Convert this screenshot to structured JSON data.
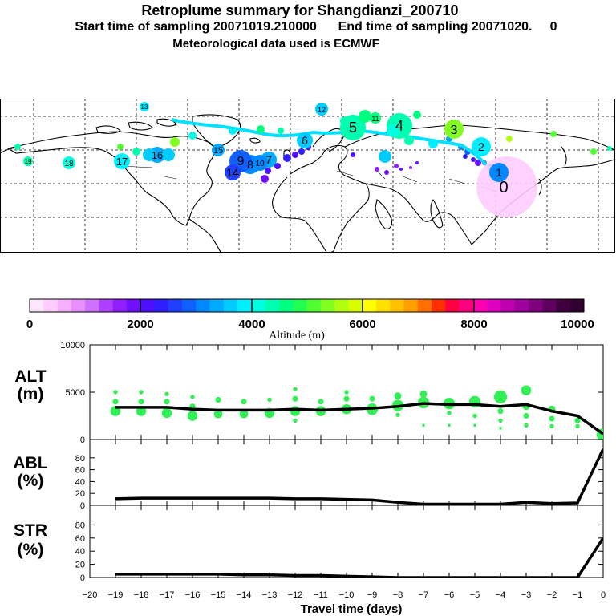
{
  "header": {
    "title": "Retroplume summary for Shangdianzi_200710",
    "start_label": "Start time of sampling 20071019.210000",
    "end_label": "End time of sampling 20071020.     0",
    "met_label": "Meteorological data used is ECMWF"
  },
  "colorbar": {
    "label": "Altitude (m)",
    "ticks": [
      "0",
      "2000",
      "4000",
      "6000",
      "8000",
      "10000"
    ],
    "colors": [
      "#ffe6ff",
      "#ffccff",
      "#f5b0ff",
      "#e890ff",
      "#d070ff",
      "#b040ff",
      "#9020ff",
      "#7010ff",
      "#5010ff",
      "#3020ff",
      "#2040ff",
      "#1060ff",
      "#0088ff",
      "#00aaff",
      "#00ccff",
      "#00eeff",
      "#00ffe0",
      "#00ffb0",
      "#00ff80",
      "#20ff50",
      "#50ff30",
      "#80ff20",
      "#b0ff10",
      "#d8ff00",
      "#ffff00",
      "#ffe000",
      "#ffc000",
      "#ffa000",
      "#ff7000",
      "#ff3000",
      "#ff0040",
      "#ff0080",
      "#ff00b0",
      "#e000c0",
      "#c000b0",
      "#a000a0",
      "#800080",
      "#600060",
      "#400040",
      "#300030"
    ]
  },
  "map": {
    "cluster_labels": [
      "0",
      "1",
      "2",
      "3",
      "4",
      "5",
      "6",
      "7",
      "8",
      "9",
      "10",
      "11",
      "12",
      "13",
      "14",
      "15",
      "16",
      "17",
      "18",
      "19"
    ]
  },
  "chart_data": [
    {
      "type": "scatter",
      "name": "ALT",
      "ylabel": "ALT\n(m)",
      "ylabel_lines": [
        "ALT",
        "(m)"
      ],
      "ylim": [
        0,
        10000
      ],
      "yticks": [
        "0",
        "5000",
        "10000"
      ],
      "x": [
        -19,
        -18,
        -17,
        -16,
        -15,
        -14,
        -13,
        -12,
        -11,
        -10,
        -9,
        -8,
        -7,
        -6,
        -5,
        -4,
        -3,
        -2,
        -1,
        0
      ],
      "mean_line": [
        3400,
        3400,
        3400,
        3200,
        3100,
        3100,
        3100,
        3200,
        3100,
        3200,
        3300,
        3500,
        3800,
        3700,
        3700,
        3500,
        3700,
        3000,
        2500,
        600
      ],
      "points": [
        {
          "x": -19,
          "y": 3000,
          "s": 7
        },
        {
          "x": -19,
          "y": 4000,
          "s": 4
        },
        {
          "x": -19,
          "y": 5000,
          "s": 3
        },
        {
          "x": -18,
          "y": 3000,
          "s": 7
        },
        {
          "x": -18,
          "y": 4000,
          "s": 4
        },
        {
          "x": -18,
          "y": 5000,
          "s": 3
        },
        {
          "x": -17,
          "y": 2800,
          "s": 7
        },
        {
          "x": -17,
          "y": 4000,
          "s": 4
        },
        {
          "x": -17,
          "y": 4800,
          "s": 3
        },
        {
          "x": -16,
          "y": 2500,
          "s": 7
        },
        {
          "x": -16,
          "y": 3500,
          "s": 4
        },
        {
          "x": -16,
          "y": 4500,
          "s": 3
        },
        {
          "x": -15,
          "y": 2700,
          "s": 6
        },
        {
          "x": -15,
          "y": 4200,
          "s": 4
        },
        {
          "x": -14,
          "y": 2700,
          "s": 6
        },
        {
          "x": -14,
          "y": 4000,
          "s": 4
        },
        {
          "x": -13,
          "y": 2800,
          "s": 7
        },
        {
          "x": -13,
          "y": 4200,
          "s": 3
        },
        {
          "x": -12,
          "y": 3000,
          "s": 7
        },
        {
          "x": -12,
          "y": 4300,
          "s": 4
        },
        {
          "x": -12,
          "y": 5300,
          "s": 3
        },
        {
          "x": -12,
          "y": 2000,
          "s": 3
        },
        {
          "x": -11,
          "y": 3000,
          "s": 7
        },
        {
          "x": -11,
          "y": 4000,
          "s": 4
        },
        {
          "x": -10,
          "y": 3200,
          "s": 7
        },
        {
          "x": -10,
          "y": 4300,
          "s": 4
        },
        {
          "x": -10,
          "y": 5000,
          "s": 3
        },
        {
          "x": -9,
          "y": 3200,
          "s": 8
        },
        {
          "x": -9,
          "y": 4300,
          "s": 4
        },
        {
          "x": -8,
          "y": 3600,
          "s": 8
        },
        {
          "x": -8,
          "y": 4600,
          "s": 5
        },
        {
          "x": -8,
          "y": 2600,
          "s": 3
        },
        {
          "x": -7,
          "y": 3900,
          "s": 8
        },
        {
          "x": -7,
          "y": 4800,
          "s": 5
        },
        {
          "x": -7,
          "y": 1500,
          "s": 2
        },
        {
          "x": -6,
          "y": 3800,
          "s": 8
        },
        {
          "x": -6,
          "y": 2800,
          "s": 3
        },
        {
          "x": -6,
          "y": 1500,
          "s": 2
        },
        {
          "x": -5,
          "y": 4000,
          "s": 8
        },
        {
          "x": -5,
          "y": 2500,
          "s": 3
        },
        {
          "x": -5,
          "y": 1500,
          "s": 2
        },
        {
          "x": -4,
          "y": 4500,
          "s": 9
        },
        {
          "x": -4,
          "y": 3000,
          "s": 4
        },
        {
          "x": -4,
          "y": 2000,
          "s": 3
        },
        {
          "x": -4,
          "y": 1200,
          "s": 2
        },
        {
          "x": -3,
          "y": 5200,
          "s": 7
        },
        {
          "x": -3,
          "y": 3500,
          "s": 5
        },
        {
          "x": -3,
          "y": 2500,
          "s": 4
        },
        {
          "x": -3,
          "y": 1500,
          "s": 3
        },
        {
          "x": -2,
          "y": 3200,
          "s": 5
        },
        {
          "x": -2,
          "y": 2200,
          "s": 4
        },
        {
          "x": -2,
          "y": 1400,
          "s": 3
        },
        {
          "x": -1,
          "y": 2000,
          "s": 4
        },
        {
          "x": -1,
          "y": 1400,
          "s": 3
        },
        {
          "x": 0,
          "y": 500,
          "s": 9
        }
      ]
    },
    {
      "type": "line",
      "name": "ABL",
      "ylabel_lines": [
        "ABL",
        "(%)"
      ],
      "ylim": [
        0,
        100
      ],
      "yticks": [
        "0",
        "20",
        "40",
        "60",
        "80"
      ],
      "x": [
        -19,
        -18,
        -17,
        -16,
        -15,
        -14,
        -13,
        -12,
        -11,
        -10,
        -9,
        -8,
        -7,
        -6,
        -5,
        -4,
        -3,
        -2,
        -1,
        0
      ],
      "values": [
        11,
        12,
        12,
        12,
        12,
        12,
        12,
        11,
        11,
        10,
        9,
        5,
        2,
        2,
        2,
        2,
        5,
        3,
        4,
        95
      ]
    },
    {
      "type": "line",
      "name": "STR",
      "ylabel_lines": [
        "STR",
        "(%)"
      ],
      "ylim": [
        0,
        100
      ],
      "yticks": [
        "0",
        "20",
        "40",
        "60",
        "80"
      ],
      "xlabel": "Travel time (days)",
      "xticks": [
        "−20",
        "−19",
        "−18",
        "−17",
        "−16",
        "−15",
        "−14",
        "−13",
        "−12",
        "−11",
        "−10",
        "−9",
        "−8",
        "−7",
        "−6",
        "−5",
        "−4",
        "−3",
        "−2",
        "−1",
        "0"
      ],
      "x": [
        -19,
        -18,
        -17,
        -16,
        -15,
        -14,
        -13,
        -12,
        -11,
        -10,
        -9,
        -8,
        -7,
        -6,
        -5,
        -4,
        -3,
        -2,
        -1,
        0
      ],
      "values": [
        5,
        5,
        5,
        5,
        5,
        4,
        4,
        3,
        3,
        2,
        1,
        0,
        0,
        0,
        0,
        0,
        0,
        0,
        0,
        60
      ]
    }
  ]
}
